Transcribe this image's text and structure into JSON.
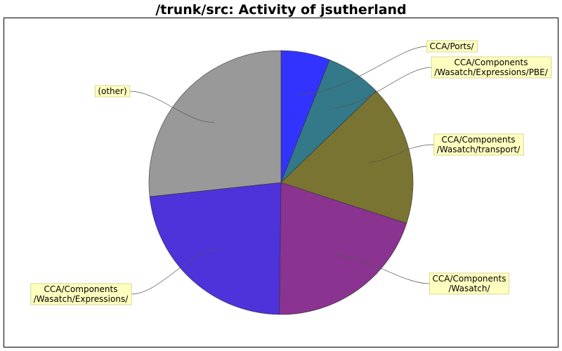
{
  "chart_data": {
    "type": "pie",
    "title": "/trunk/src: Activity of jsutherland",
    "start_angle_deg": -90,
    "slices": [
      {
        "label": [
          "CCA/Ports/"
        ],
        "value": 6.0,
        "color": "#3333ff"
      },
      {
        "label": [
          "CCA/Components",
          "/Wasatch/Expressions/PBE/"
        ],
        "value": 6.8,
        "color": "#33798a"
      },
      {
        "label": [
          "CCA/Components",
          "/Wasatch/transport/"
        ],
        "value": 17.2,
        "color": "#7a7433"
      },
      {
        "label": [
          "CCA/Components",
          "/Wasatch/"
        ],
        "value": 20.2,
        "color": "#8a3390"
      },
      {
        "label": [
          "CCA/Components",
          "/Wasatch/Expressions/"
        ],
        "value": 23.1,
        "color": "#4d33d9"
      },
      {
        "label": [
          "(other)"
        ],
        "value": 26.7,
        "color": "#999999"
      }
    ],
    "label_style": {
      "background": "#ffffc0",
      "border": "#d8d890"
    }
  }
}
